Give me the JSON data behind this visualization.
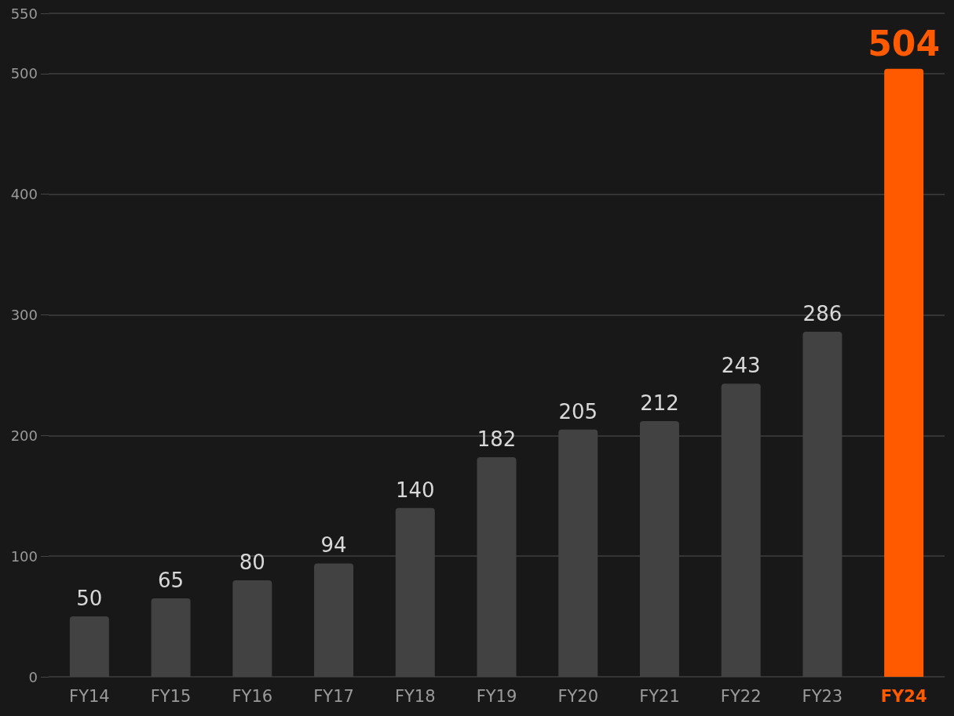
{
  "chart_data": {
    "type": "bar",
    "categories": [
      "FY14",
      "FY15",
      "FY16",
      "FY17",
      "FY18",
      "FY19",
      "FY20",
      "FY21",
      "FY22",
      "FY23",
      "FY24"
    ],
    "values": [
      50,
      65,
      80,
      94,
      140,
      182,
      205,
      212,
      243,
      286,
      504
    ],
    "colors": [
      "#424242",
      "#424242",
      "#424242",
      "#424242",
      "#424242",
      "#424242",
      "#424242",
      "#424242",
      "#424242",
      "#424242",
      "#ff5a00"
    ],
    "ylim": [
      0,
      550
    ],
    "yticks": [
      0,
      100,
      200,
      300,
      400,
      500,
      550
    ],
    "grid": "y",
    "data_labels": true
  }
}
